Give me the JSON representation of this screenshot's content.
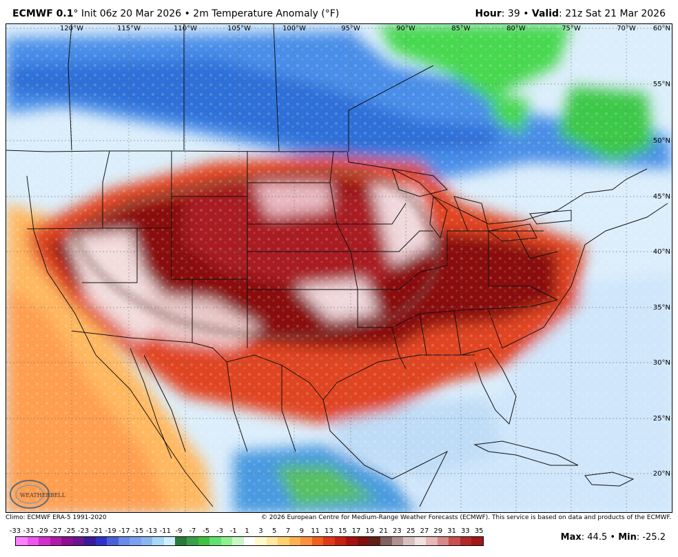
{
  "header": {
    "model": "ECMWF 0.1",
    "model_degree": "°",
    "init": "Init 06z 20 Mar 2026",
    "bullet": "•",
    "field": "2m Temperature Anomaly (°F)",
    "hour_label": "Hour",
    "hour_value": ": 39",
    "valid_label": "Valid",
    "valid_value": ": 21z Sat 21 Mar 2026"
  },
  "map": {
    "longitudes": [
      "120°W",
      "115°W",
      "110°W",
      "105°W",
      "100°W",
      "95°W",
      "90°W",
      "85°W",
      "80°W",
      "75°W",
      "70°W"
    ],
    "latitudes": [
      "60°N",
      "55°N",
      "50°N",
      "45°N",
      "40°N",
      "35°N",
      "30°N",
      "25°N",
      "20°N"
    ],
    "logo_text": "WEATHERBELL"
  },
  "footer": {
    "climo": "Climo: ECMWF ERA-5 1991-2020",
    "copyright": "© 2026 European Centre for Medium-Range Weather Forecasts (ECMWF). This service is based on data and products of the ECMWF."
  },
  "scale": {
    "ticks": [
      "-33",
      "-31",
      "-29",
      "-27",
      "-25",
      "-23",
      "-21",
      "-19",
      "-17",
      "-15",
      "-13",
      "-11",
      "-9",
      "-7",
      "-5",
      "-3",
      "-1",
      "1",
      "3",
      "5",
      "7",
      "9",
      "11",
      "13",
      "15",
      "17",
      "19",
      "21",
      "23",
      "25",
      "27",
      "29",
      "31",
      "33",
      "35"
    ],
    "colors": [
      "#ff80ff",
      "#ee55ee",
      "#d030c8",
      "#b01aa8",
      "#8a1090",
      "#6a1590",
      "#3a1a9a",
      "#3030c8",
      "#4a60d8",
      "#6a8ae8",
      "#7aa0f0",
      "#88b8f0",
      "#a8d8f8",
      "#d0eefc",
      "#2a7a3a",
      "#3aa048",
      "#40c040",
      "#60e070",
      "#90f090",
      "#c8f8c8",
      "#ffffff",
      "#fff8c8",
      "#ffe8a0",
      "#ffd070",
      "#ffb050",
      "#ff9040",
      "#f06020",
      "#e03818",
      "#c82010",
      "#a81010",
      "#801010",
      "#602018",
      "#806060",
      "#b09090",
      "#d8c0c0",
      "#f0e0e0",
      "#e8b8b8",
      "#d88888",
      "#c85050",
      "#b02828",
      "#a01818"
    ],
    "max_label": "Max",
    "max_value": ": 44.5",
    "min_label": "Min",
    "min_value": ": -25.2"
  }
}
